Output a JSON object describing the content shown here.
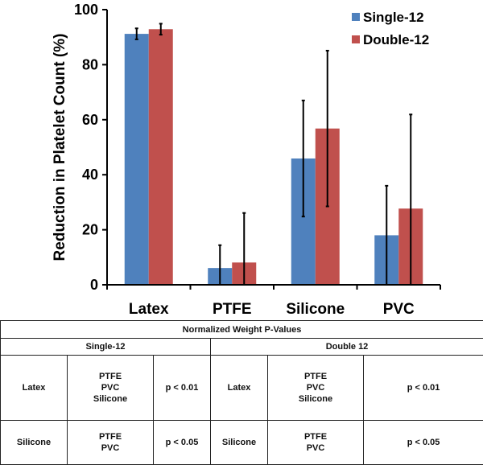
{
  "chart_data": {
    "type": "bar",
    "title": "",
    "xlabel": "",
    "ylabel": "Reduction in Platelet Count (%)",
    "ylim": [
      0,
      100
    ],
    "yticks": [
      "0",
      "20",
      "40",
      "60",
      "80",
      "100"
    ],
    "categories": [
      "Latex",
      "PTFE",
      "Silicone",
      "PVC"
    ],
    "legend_position": "top-right",
    "series": [
      {
        "name": "Single-12",
        "color": "#4F81BD",
        "values": [
          91.2,
          6.1,
          45.9,
          18.0
        ],
        "errors": [
          2.0,
          8.3,
          21.1,
          18.0
        ]
      },
      {
        "name": "Double-12",
        "color": "#C0504D",
        "values": [
          92.9,
          8.1,
          56.8,
          27.7
        ],
        "errors": [
          2.0,
          18.0,
          28.3,
          34.2
        ]
      }
    ]
  },
  "table": {
    "title": "Normalized Weight P-Values",
    "groups": [
      "Single-12",
      "Double 12"
    ],
    "rows": [
      {
        "single": {
          "material": "Latex",
          "vs": [
            "PTFE",
            "PVC",
            "Silicone"
          ],
          "p": "p < 0.01"
        },
        "double": {
          "material": "Latex",
          "vs": [
            "PTFE",
            "PVC",
            "Silicone"
          ],
          "p": "p < 0.01"
        }
      },
      {
        "single": {
          "material": "Silicone",
          "vs": [
            "PTFE",
            "PVC"
          ],
          "p": "p < 0.05"
        },
        "double": {
          "material": "Silicone",
          "vs": [
            "PTFE",
            "PVC"
          ],
          "p": "p < 0.05"
        }
      }
    ]
  }
}
